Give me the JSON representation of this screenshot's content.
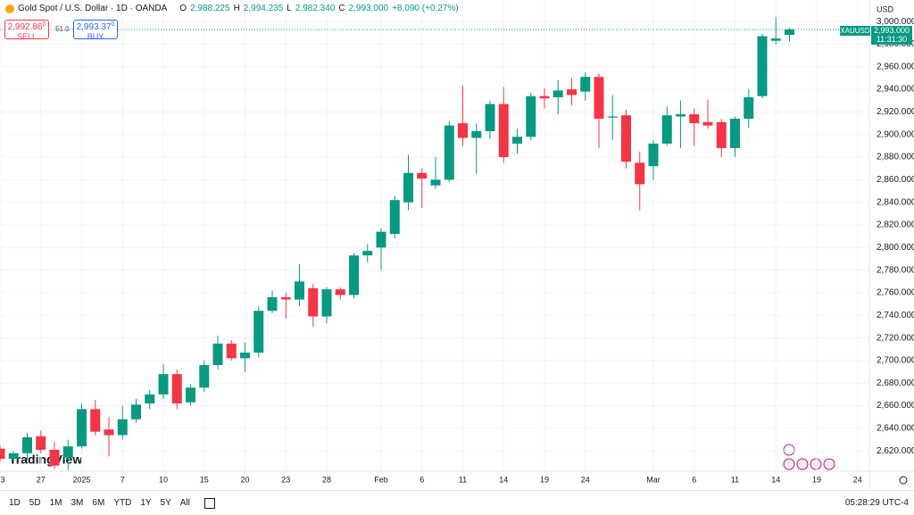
{
  "chart_data": {
    "type": "candlestick",
    "categories": [
      "3",
      null,
      null,
      "27",
      null,
      null,
      "2025",
      null,
      null,
      "7",
      null,
      null,
      "10",
      null,
      null,
      "15",
      null,
      null,
      "20",
      null,
      null,
      "23",
      null,
      null,
      "28",
      null,
      null,
      null,
      "Feb",
      null,
      null,
      "6",
      null,
      null,
      "11",
      null,
      null,
      "14",
      null,
      null,
      "19",
      null,
      null,
      "24",
      null,
      null,
      null,
      null,
      "Mar",
      null,
      null,
      "6",
      null,
      null,
      "11",
      null,
      null,
      "14",
      null,
      null,
      "19",
      null,
      null,
      "24"
    ],
    "open": [
      2622,
      2613,
      2618,
      2633,
      2621,
      2614,
      2624,
      2657,
      2639,
      2634,
      2648,
      2662,
      2670,
      2688,
      2663,
      2676,
      2696,
      2715,
      2702,
      2707,
      2744,
      2756,
      2754,
      2764,
      2739,
      2763,
      2758,
      2793,
      2800,
      2812,
      2840,
      2866,
      2855,
      2860,
      2910,
      2897,
      2903,
      2927,
      2892,
      2898,
      2934,
      2933,
      2940,
      2938,
      2951,
      2915,
      2917,
      2875,
      2872,
      2892,
      2916,
      2918,
      2911,
      2911,
      2888,
      2914,
      2934,
      2983,
      2988.225,
      null,
      null,
      null,
      null,
      null
    ],
    "high": [
      2625,
      2620,
      2636,
      2638,
      2628,
      2630,
      2662,
      2665,
      2650,
      2660,
      2666,
      2674,
      2697,
      2692,
      2679,
      2700,
      2722,
      2718,
      2716,
      2748,
      2762,
      2760,
      2785,
      2768,
      2765,
      2765,
      2795,
      2803,
      2817,
      2846,
      2882,
      2870,
      2880,
      2912,
      2943,
      2910,
      2930,
      2942,
      2905,
      2937,
      2941,
      2948,
      2950,
      2955,
      2954,
      2935,
      2922,
      2885,
      2895,
      2925,
      2930,
      2923,
      2931,
      2914,
      2916,
      2940,
      2989,
      3004,
      2994.235,
      null,
      null,
      null,
      null,
      null
    ],
    "low": [
      2610,
      2611,
      2612,
      2618,
      2604,
      2603,
      2622,
      2634,
      2615,
      2630,
      2645,
      2657,
      2666,
      2657,
      2660,
      2672,
      2692,
      2700,
      2690,
      2703,
      2742,
      2737,
      2748,
      2730,
      2733,
      2754,
      2755,
      2787,
      2780,
      2808,
      2833,
      2835,
      2852,
      2858,
      2890,
      2865,
      2896,
      2875,
      2883,
      2895,
      2923,
      2918,
      2926,
      2930,
      2888,
      2895,
      2870,
      2833,
      2860,
      2890,
      2888,
      2890,
      2905,
      2880,
      2880,
      2906,
      2932,
      2980,
      2982.34,
      null,
      null,
      null,
      null,
      null
    ],
    "close": [
      2613,
      2618,
      2632,
      2621,
      2607,
      2624,
      2657,
      2637,
      2634,
      2648,
      2661,
      2670,
      2688,
      2662,
      2676,
      2696,
      2715,
      2702,
      2707,
      2744,
      2756,
      2754,
      2770,
      2739,
      2763,
      2758,
      2793,
      2797,
      2814,
      2842,
      2866,
      2861,
      2860,
      2908,
      2897,
      2903,
      2927,
      2880,
      2898,
      2934,
      2932,
      2939,
      2935,
      2951,
      2914,
      2916,
      2876,
      2856,
      2892,
      2917,
      2918,
      2910,
      2908,
      2888,
      2914,
      2933,
      2987,
      2985,
      2993,
      null,
      null,
      null,
      null,
      null
    ],
    "up_color": "#089981",
    "down_color": "#f23645",
    "ylim": [
      2602,
      3008
    ],
    "yticks": [
      {
        "value": 2620,
        "label": "2,620.000"
      },
      {
        "value": 2640,
        "label": "2,640.000"
      },
      {
        "value": 2660,
        "label": "2,660.000"
      },
      {
        "value": 2680,
        "label": "2,680.000"
      },
      {
        "value": 2700,
        "label": "2,700.000"
      },
      {
        "value": 2720,
        "label": "2,720.000"
      },
      {
        "value": 2740,
        "label": "2,740.000"
      },
      {
        "value": 2760,
        "label": "2,760.000"
      },
      {
        "value": 2780,
        "label": "2,780.000"
      },
      {
        "value": 2800,
        "label": "2,800.000"
      },
      {
        "value": 2820,
        "label": "2,820.000"
      },
      {
        "value": 2840,
        "label": "2,840.000"
      },
      {
        "value": 2860,
        "label": "2,860.000"
      },
      {
        "value": 2880,
        "label": "2,880.000"
      },
      {
        "value": 2900,
        "label": "2,900.000"
      },
      {
        "value": 2920,
        "label": "2,920.000"
      },
      {
        "value": 2940,
        "label": "2,940.000"
      },
      {
        "value": 2960,
        "label": "2,960.000"
      },
      {
        "value": 2980,
        "label": "2,980.000"
      },
      {
        "value": 3000,
        "label": "3,000.000"
      }
    ],
    "grid": true
  },
  "ui": {
    "symbol": "Gold Spot / U.S. Dollar · 1D · OANDA",
    "o": "O",
    "o_value": "2,988.225",
    "h": "H",
    "h_value": "2,994.235",
    "l": "L",
    "l_value": "2,982.340",
    "c": "C",
    "c_value": "2,993.000",
    "change": "+8.090 (+0.27%)",
    "sell_price": "2,992.86",
    "sell_sup": "0",
    "sell": "SELL",
    "spread": "51.0",
    "buy_price": "2,993.37",
    "buy_sup": "0",
    "buy": "BUY",
    "currency": "USD",
    "ticker": "XAUUSD",
    "last_price": "2,993.000",
    "countdown": "11:31:30",
    "logo": "TradingView",
    "ranges": [
      "1D",
      "5D",
      "1M",
      "3M",
      "6M",
      "YTD",
      "1Y",
      "5Y",
      "All"
    ],
    "clock": "05:28:29 UTC-4"
  }
}
